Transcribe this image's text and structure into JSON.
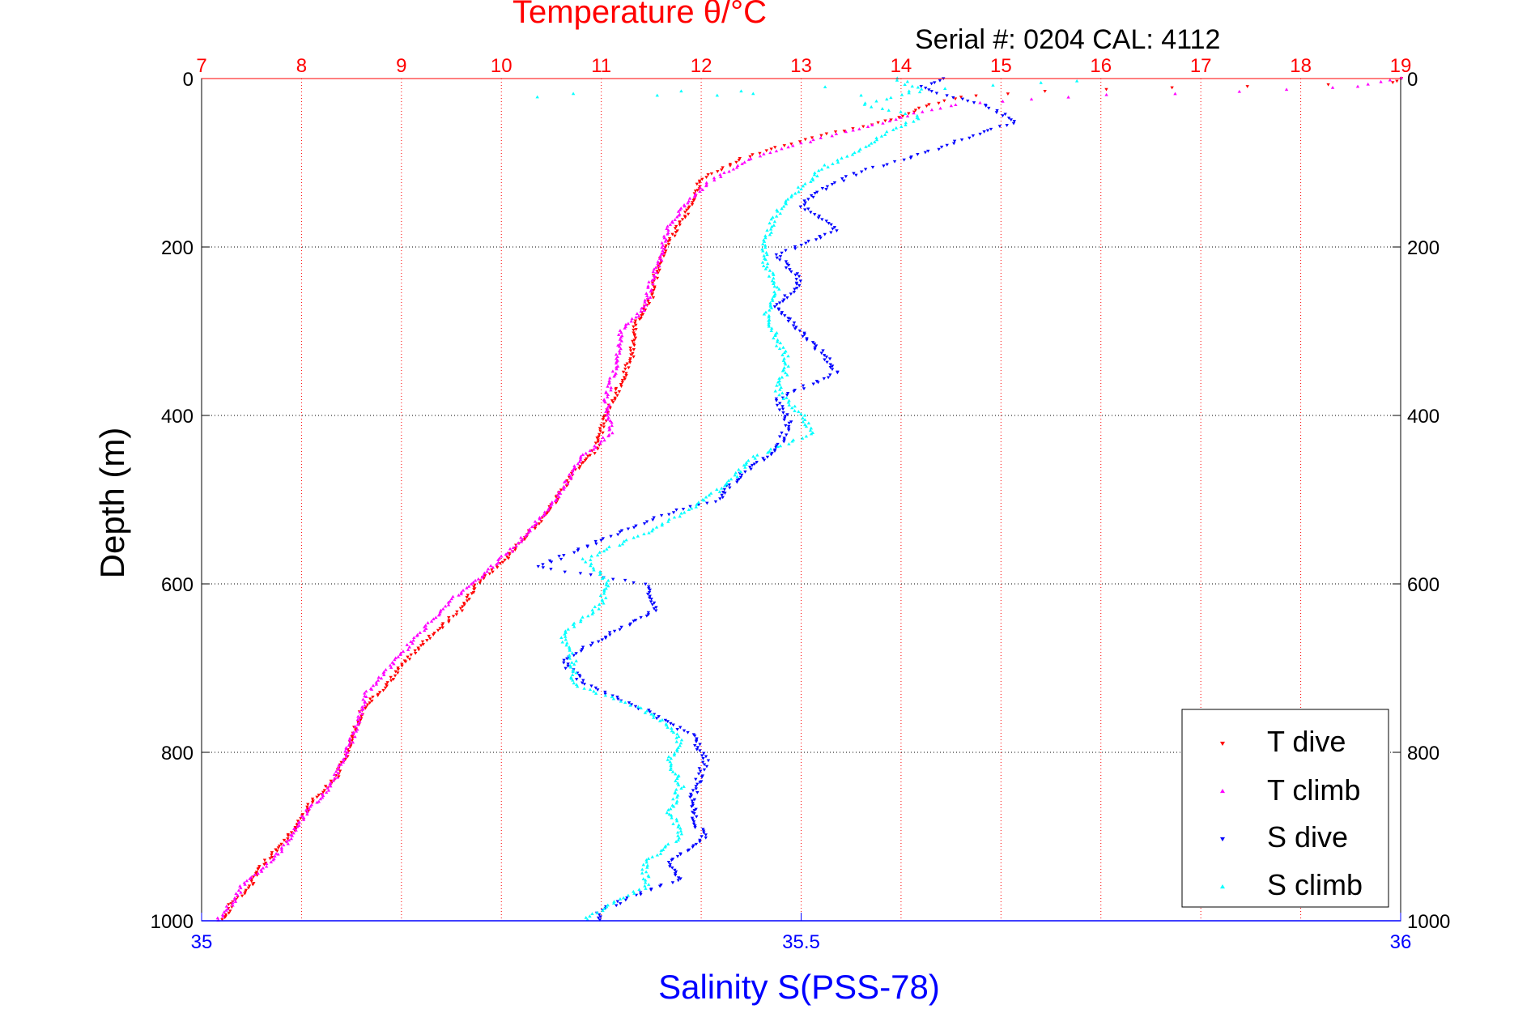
{
  "chart_data": {
    "type": "scatter",
    "title": "Temperature θ/°C",
    "subtitle": "Serial #: 0204  CAL: 4112",
    "ylabel": "Depth (m)",
    "xlabel": "Salinity S(PSS-78)",
    "y_axis": {
      "range": [
        0,
        1000
      ],
      "reversed": true,
      "ticks": [
        0,
        200,
        400,
        600,
        800,
        1000
      ],
      "tick_labels": [
        "0",
        "200",
        "400",
        "600",
        "800",
        "1000"
      ]
    },
    "temperature_axis": {
      "position": "top",
      "range": [
        7,
        19
      ],
      "ticks": [
        7,
        8,
        9,
        10,
        11,
        12,
        13,
        14,
        15,
        16,
        17,
        18,
        19
      ],
      "tick_labels": [
        "7",
        "8",
        "9",
        "10",
        "11",
        "12",
        "13",
        "14",
        "15",
        "16",
        "17",
        "18",
        "19"
      ],
      "color": "#ff0000"
    },
    "salinity_axis": {
      "position": "bottom",
      "range": [
        35,
        36
      ],
      "ticks": [
        35,
        35.5,
        36
      ],
      "tick_labels": [
        "35",
        "35.5",
        "36"
      ],
      "color": "#0000ff"
    },
    "grid": true,
    "legend": {
      "position": "bottom-right",
      "entries": [
        "T dive",
        "T climb",
        "S dive",
        "S climb"
      ]
    },
    "series": [
      {
        "name": "T dive",
        "axis": "temperature",
        "color": "#ff0000",
        "marker": "triangle-down",
        "points": [
          [
            19,
            0
          ],
          [
            18.9,
            5
          ],
          [
            17,
            10
          ],
          [
            15.5,
            15
          ],
          [
            14.7,
            20
          ],
          [
            14.3,
            30
          ],
          [
            14.0,
            45
          ],
          [
            13.7,
            55
          ],
          [
            13.3,
            65
          ],
          [
            12.8,
            80
          ],
          [
            12.4,
            95
          ],
          [
            12.0,
            120
          ],
          [
            11.9,
            150
          ],
          [
            11.8,
            170
          ],
          [
            11.65,
            200
          ],
          [
            11.55,
            230
          ],
          [
            11.5,
            260
          ],
          [
            11.35,
            290
          ],
          [
            11.3,
            330
          ],
          [
            11.2,
            360
          ],
          [
            11.05,
            400
          ],
          [
            10.95,
            440
          ],
          [
            10.7,
            470
          ],
          [
            10.55,
            500
          ],
          [
            10.35,
            530
          ],
          [
            10.05,
            570
          ],
          [
            9.75,
            600
          ],
          [
            9.6,
            630
          ],
          [
            9.3,
            660
          ],
          [
            9.05,
            690
          ],
          [
            8.85,
            720
          ],
          [
            8.6,
            750
          ],
          [
            8.5,
            790
          ],
          [
            8.35,
            830
          ],
          [
            8.1,
            860
          ],
          [
            8.0,
            880
          ],
          [
            7.8,
            910
          ],
          [
            7.55,
            940
          ],
          [
            7.5,
            960
          ],
          [
            7.3,
            980
          ],
          [
            7.2,
            1000
          ]
        ]
      },
      {
        "name": "T climb",
        "axis": "temperature",
        "color": "#ff00ff",
        "marker": "triangle-up",
        "points": [
          [
            19,
            0
          ],
          [
            18.5,
            10
          ],
          [
            17.5,
            15
          ],
          [
            16,
            20
          ],
          [
            15.2,
            25
          ],
          [
            14.6,
            30
          ],
          [
            14.2,
            40
          ],
          [
            13.9,
            50
          ],
          [
            13.4,
            65
          ],
          [
            12.9,
            80
          ],
          [
            12.5,
            95
          ],
          [
            12.05,
            125
          ],
          [
            11.85,
            150
          ],
          [
            11.65,
            180
          ],
          [
            11.6,
            210
          ],
          [
            11.5,
            240
          ],
          [
            11.45,
            270
          ],
          [
            11.2,
            300
          ],
          [
            11.15,
            340
          ],
          [
            11.05,
            380
          ],
          [
            11.1,
            420
          ],
          [
            10.8,
            450
          ],
          [
            10.6,
            490
          ],
          [
            10.4,
            520
          ],
          [
            10.1,
            560
          ],
          [
            9.8,
            590
          ],
          [
            9.5,
            620
          ],
          [
            9.25,
            650
          ],
          [
            8.95,
            690
          ],
          [
            8.65,
            730
          ],
          [
            8.55,
            770
          ],
          [
            8.45,
            800
          ],
          [
            8.3,
            840
          ],
          [
            8.05,
            870
          ],
          [
            7.9,
            900
          ],
          [
            7.7,
            930
          ],
          [
            7.4,
            960
          ],
          [
            7.3,
            980
          ],
          [
            7.15,
            1000
          ]
        ]
      },
      {
        "name": "S dive",
        "axis": "salinity",
        "color": "#0000ff",
        "marker": "triangle-down",
        "points": [
          [
            35.62,
            0
          ],
          [
            35.6,
            10
          ],
          [
            35.62,
            20
          ],
          [
            35.65,
            30
          ],
          [
            35.68,
            50
          ],
          [
            35.64,
            70
          ],
          [
            35.6,
            90
          ],
          [
            35.55,
            110
          ],
          [
            35.52,
            130
          ],
          [
            35.5,
            150
          ],
          [
            35.53,
            180
          ],
          [
            35.48,
            210
          ],
          [
            35.5,
            240
          ],
          [
            35.48,
            270
          ],
          [
            35.5,
            300
          ],
          [
            35.52,
            330
          ],
          [
            35.53,
            350
          ],
          [
            35.48,
            380
          ],
          [
            35.49,
            410
          ],
          [
            35.48,
            440
          ],
          [
            35.45,
            470
          ],
          [
            35.43,
            500
          ],
          [
            35.38,
            520
          ],
          [
            35.33,
            550
          ],
          [
            35.28,
            580
          ],
          [
            35.37,
            600
          ],
          [
            35.38,
            630
          ],
          [
            35.34,
            660
          ],
          [
            35.3,
            690
          ],
          [
            35.32,
            720
          ],
          [
            35.37,
            750
          ],
          [
            35.41,
            780
          ],
          [
            35.42,
            810
          ],
          [
            35.41,
            850
          ],
          [
            35.41,
            880
          ],
          [
            35.42,
            900
          ],
          [
            35.39,
            930
          ],
          [
            35.4,
            950
          ],
          [
            35.36,
            970
          ],
          [
            35.33,
            990
          ],
          [
            35.33,
            1000
          ]
        ]
      },
      {
        "name": "S climb",
        "axis": "salinity",
        "color": "#00ffff",
        "marker": "triangle-up",
        "points": [
          [
            35.58,
            0
          ],
          [
            35.6,
            15
          ],
          [
            35.55,
            30
          ],
          [
            35.6,
            45
          ],
          [
            35.57,
            65
          ],
          [
            35.55,
            85
          ],
          [
            35.52,
            105
          ],
          [
            35.5,
            130
          ],
          [
            35.48,
            160
          ],
          [
            35.47,
            190
          ],
          [
            35.47,
            220
          ],
          [
            35.48,
            250
          ],
          [
            35.47,
            280
          ],
          [
            35.48,
            310
          ],
          [
            35.49,
            340
          ],
          [
            35.48,
            370
          ],
          [
            35.5,
            400
          ],
          [
            35.51,
            420
          ],
          [
            35.46,
            450
          ],
          [
            35.44,
            480
          ],
          [
            35.41,
            510
          ],
          [
            35.37,
            540
          ],
          [
            35.32,
            570
          ],
          [
            35.34,
            600
          ],
          [
            35.33,
            630
          ],
          [
            35.3,
            660
          ],
          [
            35.31,
            690
          ],
          [
            35.31,
            720
          ],
          [
            35.37,
            750
          ],
          [
            35.4,
            780
          ],
          [
            35.39,
            810
          ],
          [
            35.4,
            840
          ],
          [
            35.39,
            870
          ],
          [
            35.4,
            900
          ],
          [
            35.37,
            930
          ],
          [
            35.37,
            960
          ],
          [
            35.34,
            980
          ],
          [
            35.32,
            1000
          ]
        ]
      }
    ],
    "surface_climb_scatter": {
      "name": "S climb",
      "axis": "salinity",
      "color": "#00ffff",
      "points": [
        [
          35.28,
          22
        ],
        [
          35.38,
          20
        ],
        [
          35.43,
          20
        ],
        [
          35.45,
          15
        ],
        [
          35.55,
          20
        ],
        [
          35.59,
          15
        ],
        [
          35.62,
          12
        ],
        [
          35.66,
          8
        ],
        [
          35.7,
          5
        ],
        [
          35.73,
          3
        ],
        [
          35.4,
          15
        ],
        [
          35.46,
          18
        ],
        [
          35.52,
          10
        ],
        [
          35.31,
          18
        ]
      ]
    }
  }
}
